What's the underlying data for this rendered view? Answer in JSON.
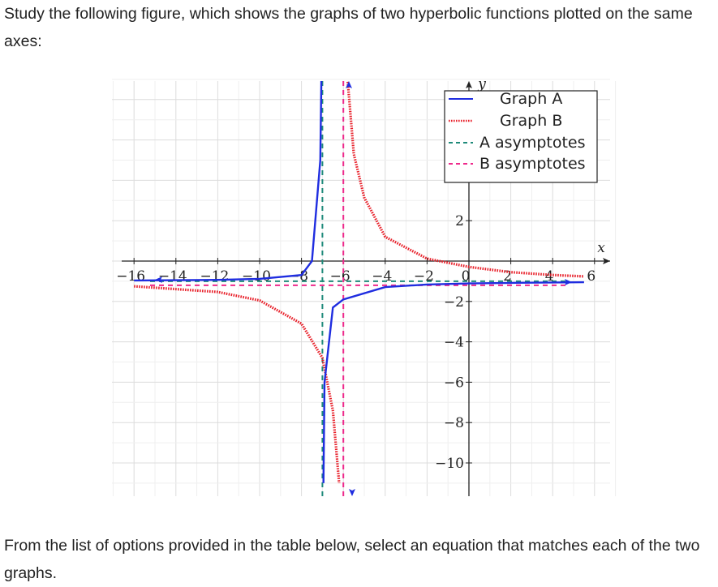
{
  "question": {
    "intro": "Study the following figure, which shows the graphs of two hyperbolic functions plotted on the same axes:",
    "outro": "From the list of options provided in the table below, select an equation that matches each of the two graphs."
  },
  "chart_data": {
    "type": "line",
    "xlabel": "x",
    "ylabel": "y",
    "xlim": [
      -17,
      7
    ],
    "ylim": [
      -11,
      9
    ],
    "x_ticks": [
      -16,
      -14,
      -12,
      -10,
      -8,
      -6,
      -4,
      -2,
      0,
      2,
      4,
      6
    ],
    "y_ticks": [
      2,
      -2,
      -4,
      -6,
      -8,
      -10
    ],
    "grid": true,
    "legend_position": "top-right",
    "series": [
      {
        "name": "Graph A",
        "style": "solid",
        "color": "#1f2de0",
        "points": [
          [
            -16,
            -0.96
          ],
          [
            -12,
            -0.93
          ],
          [
            -10,
            -0.88
          ],
          [
            -8,
            -0.69
          ],
          [
            -7.5,
            0.0
          ],
          [
            -7.1,
            5.0
          ],
          [
            -7.05,
            9.0
          ],
          [
            -6.95,
            -11.0
          ],
          [
            -6.9,
            -6.0
          ],
          [
            -6.5,
            -2.3
          ],
          [
            -6,
            -1.9
          ],
          [
            -4,
            -1.29
          ],
          [
            -2,
            -1.16
          ],
          [
            0,
            -1.11
          ],
          [
            2,
            -1.08
          ],
          [
            4,
            -1.06
          ],
          [
            5.5,
            -1.05
          ]
        ]
      },
      {
        "name": "Graph B",
        "style": "dotted",
        "color": "#e8202a",
        "points": [
          [
            -16,
            -1.25
          ],
          [
            -12,
            -1.53
          ],
          [
            -10,
            -1.95
          ],
          [
            -8,
            -3.1
          ],
          [
            -7,
            -4.8
          ],
          [
            -6.5,
            -7.4
          ],
          [
            -6.2,
            -11.0
          ],
          [
            -5.8,
            9.0
          ],
          [
            -5.5,
            5.3
          ],
          [
            -5,
            3.14
          ],
          [
            -4,
            1.2
          ],
          [
            -2,
            0.12
          ],
          [
            0,
            -0.29
          ],
          [
            2,
            -0.55
          ],
          [
            4,
            -0.69
          ],
          [
            5.5,
            -0.76
          ]
        ]
      },
      {
        "name": "A asymptotes",
        "style": "dashed",
        "color": "#1f8a7a",
        "x": -7,
        "y": -1
      },
      {
        "name": "B asymptotes",
        "style": "dashed",
        "color": "#ee2a8c",
        "x": -6,
        "y": -1.2
      }
    ]
  }
}
